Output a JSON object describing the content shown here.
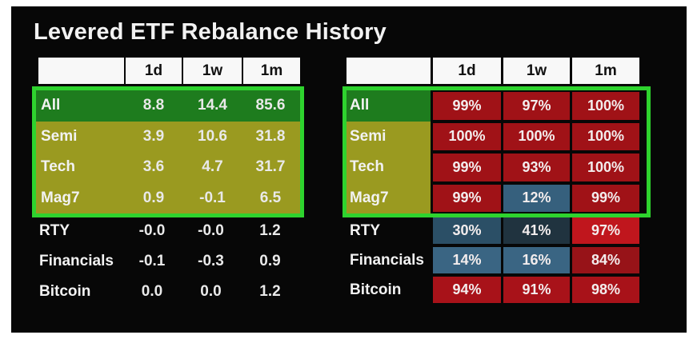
{
  "title": "Levered ETF Rebalance History",
  "columns": [
    "1d",
    "1w",
    "1m"
  ],
  "palette": {
    "canvas_bg": "#070707",
    "header_bg": "#f8f8f8",
    "highlight_border_green": "#2ed32e",
    "row_green": "#1e7c1e",
    "row_olive": "#9a9a20",
    "cell_red": "#a01217",
    "cell_red_bright": "#c0161d",
    "cell_blue": "#3a6583",
    "cell_blue_dark": "#20333f"
  },
  "returns_table": {
    "rows": [
      {
        "label": "All",
        "bg": "#1e7c1e",
        "values": [
          "8.8",
          "14.4",
          "85.6"
        ]
      },
      {
        "label": "Semi",
        "bg": "#9a9a20",
        "values": [
          "3.9",
          "10.6",
          "31.8"
        ]
      },
      {
        "label": "Tech",
        "bg": "#9a9a20",
        "values": [
          "3.6",
          "4.7",
          "31.7"
        ]
      },
      {
        "label": "Mag7",
        "bg": "#9a9a20",
        "values": [
          "0.9",
          "-0.1",
          "6.5"
        ]
      },
      {
        "label": "RTY",
        "values": [
          "-0.0",
          "-0.0",
          "1.2"
        ]
      },
      {
        "label": "Financials",
        "values": [
          "-0.1",
          "-0.3",
          "0.9"
        ]
      },
      {
        "label": "Bitcoin",
        "values": [
          "0.0",
          "0.0",
          "1.2"
        ]
      }
    ]
  },
  "percent_table": {
    "rows": [
      {
        "label": "All",
        "label_bg": "#1e7c1e",
        "cells": [
          "99%",
          "97%",
          "100%"
        ],
        "colors": [
          "#a01217",
          "#a01217",
          "#a01217"
        ]
      },
      {
        "label": "Semi",
        "label_bg": "#9a9a20",
        "cells": [
          "100%",
          "100%",
          "100%"
        ],
        "colors": [
          "#a01217",
          "#a01217",
          "#a01217"
        ]
      },
      {
        "label": "Tech",
        "label_bg": "#9a9a20",
        "cells": [
          "99%",
          "93%",
          "100%"
        ],
        "colors": [
          "#a01217",
          "#a01217",
          "#a01217"
        ]
      },
      {
        "label": "Mag7",
        "label_bg": "#9a9a20",
        "cells": [
          "99%",
          "12%",
          "99%"
        ],
        "colors": [
          "#a01217",
          "#36607d",
          "#a01217"
        ]
      },
      {
        "label": "RTY",
        "cells": [
          "30%",
          "41%",
          "97%"
        ],
        "colors": [
          "#2b4f66",
          "#20333f",
          "#c0161d"
        ]
      },
      {
        "label": "Financials",
        "cells": [
          "14%",
          "16%",
          "84%"
        ],
        "colors": [
          "#3a6583",
          "#3a6583",
          "#971318"
        ]
      },
      {
        "label": "Bitcoin",
        "cells": [
          "94%",
          "91%",
          "98%"
        ],
        "colors": [
          "#a81219",
          "#a81219",
          "#a81219"
        ]
      }
    ]
  },
  "chart_data": [
    {
      "type": "table",
      "title": "Levered ETF Rebalance History - returns",
      "columns": [
        "",
        "1d",
        "1w",
        "1m"
      ],
      "rows": [
        [
          "All",
          "8.8",
          "14.4",
          "85.6"
        ],
        [
          "Semi",
          "3.9",
          "10.6",
          "31.8"
        ],
        [
          "Tech",
          "3.6",
          "4.7",
          "31.7"
        ],
        [
          "Mag7",
          "0.9",
          "-0.1",
          "6.5"
        ],
        [
          "RTY",
          "-0.0",
          "-0.0",
          "1.2"
        ],
        [
          "Financials",
          "-0.1",
          "-0.3",
          "0.9"
        ],
        [
          "Bitcoin",
          "0.0",
          "0.0",
          "1.2"
        ]
      ],
      "highlighted_rows": [
        "All",
        "Semi",
        "Tech",
        "Mag7"
      ]
    },
    {
      "type": "heatmap",
      "title": "Levered ETF Rebalance History - rebalance percentile",
      "columns": [
        "",
        "1d",
        "1w",
        "1m"
      ],
      "rows": [
        [
          "All",
          "99%",
          "97%",
          "100%"
        ],
        [
          "Semi",
          "100%",
          "100%",
          "100%"
        ],
        [
          "Tech",
          "99%",
          "93%",
          "100%"
        ],
        [
          "Mag7",
          "99%",
          "12%",
          "99%"
        ],
        [
          "RTY",
          "30%",
          "41%",
          "97%"
        ],
        [
          "Financials",
          "14%",
          "16%",
          "84%"
        ],
        [
          "Bitcoin",
          "94%",
          "91%",
          "98%"
        ]
      ],
      "highlighted_rows": [
        "All",
        "Semi",
        "Tech",
        "Mag7"
      ],
      "color_rule": "high percentages red, low percentages blue"
    }
  ]
}
